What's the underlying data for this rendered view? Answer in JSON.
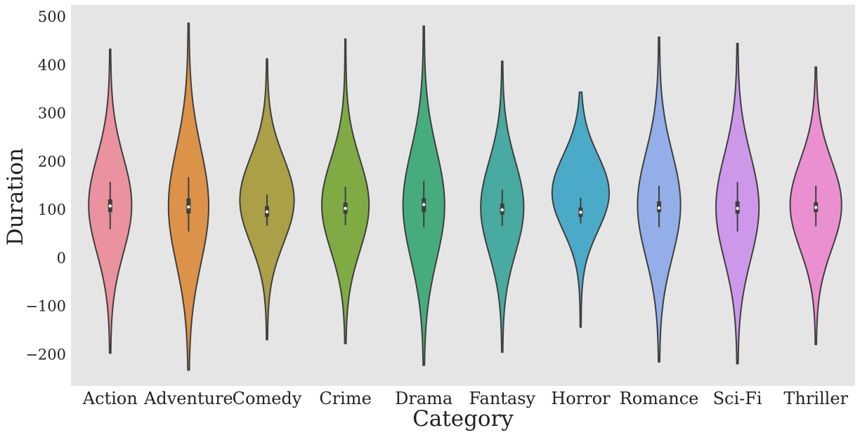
{
  "chart_data": {
    "type": "violin",
    "xlabel": "Category",
    "ylabel": "Duration",
    "ylim": [
      -265,
      525
    ],
    "yticks": [
      -200,
      -100,
      0,
      100,
      200,
      300,
      400,
      500
    ],
    "ytick_labels": [
      "−200",
      "−100",
      "0",
      "100",
      "200",
      "300",
      "400",
      "500"
    ],
    "grid": false,
    "background": "#e5e5e5",
    "outline_color": "#3f3f3f",
    "categories": [
      {
        "name": "Action",
        "color": "#ea929e",
        "min": -197,
        "max": 433,
        "q1": 95,
        "median": 108,
        "q3": 122,
        "whisker_low": 60,
        "whisker_high": 158,
        "density_center": 110,
        "density_spread": 92,
        "peak_halfwidth": 30
      },
      {
        "name": "Adventure",
        "color": "#dc9248",
        "min": -232,
        "max": 487,
        "q1": 92,
        "median": 106,
        "q3": 124,
        "whisker_low": 55,
        "whisker_high": 168,
        "density_center": 108,
        "density_spread": 110,
        "peak_halfwidth": 28
      },
      {
        "name": "Comedy",
        "color": "#ab9f47",
        "min": -169,
        "max": 413,
        "q1": 85,
        "median": 96,
        "q3": 108,
        "whisker_low": 67,
        "whisker_high": 132,
        "density_center": 120,
        "density_spread": 82,
        "peak_halfwidth": 38
      },
      {
        "name": "Crime",
        "color": "#80aa43",
        "min": -177,
        "max": 454,
        "q1": 92,
        "median": 103,
        "q3": 115,
        "whisker_low": 68,
        "whisker_high": 148,
        "density_center": 110,
        "density_spread": 88,
        "peak_halfwidth": 33
      },
      {
        "name": "Drama",
        "color": "#46ac7e",
        "min": -222,
        "max": 481,
        "q1": 95,
        "median": 111,
        "q3": 124,
        "whisker_low": 64,
        "whisker_high": 160,
        "density_center": 110,
        "density_spread": 105,
        "peak_halfwidth": 29
      },
      {
        "name": "Fantasy",
        "color": "#48aaa0",
        "min": -195,
        "max": 408,
        "q1": 90,
        "median": 100,
        "q3": 113,
        "whisker_low": 67,
        "whisker_high": 142,
        "density_center": 105,
        "density_spread": 88,
        "peak_halfwidth": 30
      },
      {
        "name": "Horror",
        "color": "#4baac8",
        "min": -143,
        "max": 344,
        "q1": 85,
        "median": 95,
        "q3": 105,
        "whisker_low": 72,
        "whisker_high": 125,
        "density_center": 135,
        "density_spread": 72,
        "peak_halfwidth": 40
      },
      {
        "name": "Romance",
        "color": "#93aee8",
        "min": -215,
        "max": 458,
        "q1": 95,
        "median": 104,
        "q3": 118,
        "whisker_low": 64,
        "whisker_high": 150,
        "density_center": 110,
        "density_spread": 100,
        "peak_halfwidth": 30
      },
      {
        "name": "Sci-Fi",
        "color": "#cd98ea",
        "min": -219,
        "max": 445,
        "q1": 92,
        "median": 103,
        "q3": 118,
        "whisker_low": 55,
        "whisker_high": 158,
        "density_center": 105,
        "density_spread": 100,
        "peak_halfwidth": 30
      },
      {
        "name": "Thriller",
        "color": "#ea8fcf",
        "min": -179,
        "max": 396,
        "q1": 95,
        "median": 105,
        "q3": 116,
        "whisker_low": 66,
        "whisker_high": 150,
        "density_center": 110,
        "density_spread": 85,
        "peak_halfwidth": 36
      }
    ]
  }
}
